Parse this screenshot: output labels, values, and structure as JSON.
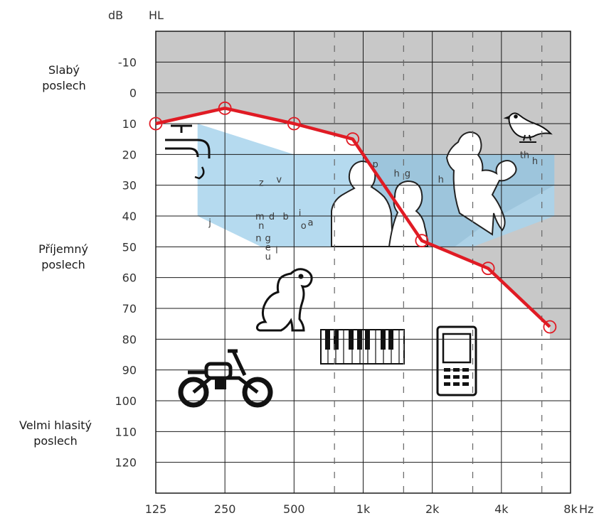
{
  "chart_data": {
    "type": "line",
    "x_unit_label": "Hz",
    "y_unit_label": "dB HL",
    "y_unit_label_parts": [
      "dB",
      "HL"
    ],
    "x_scale": "log2",
    "y_inverted": true,
    "x_ticks": [
      {
        "hz": 125,
        "label": "125"
      },
      {
        "hz": 250,
        "label": "250"
      },
      {
        "hz": 500,
        "label": "500"
      },
      {
        "hz": 1000,
        "label": "1k"
      },
      {
        "hz": 2000,
        "label": "2k"
      },
      {
        "hz": 4000,
        "label": "4k"
      },
      {
        "hz": 8000,
        "label": "8k"
      }
    ],
    "x_intermediate_hz": [
      750,
      1500,
      3000,
      6000
    ],
    "y_ticks": [
      -10,
      0,
      10,
      20,
      30,
      40,
      50,
      60,
      70,
      80,
      90,
      100,
      110,
      120
    ],
    "ylim": [
      -20,
      130
    ],
    "xlim": [
      125,
      8000
    ],
    "grid": true,
    "series": [
      {
        "color": "#e01b24",
        "x": [
          125,
          250,
          500,
          900,
          1800,
          3500,
          6500
        ],
        "y": [
          10,
          5,
          10,
          15,
          48,
          57,
          76
        ]
      }
    ],
    "region_labels": [
      {
        "lines": [
          "Slabý",
          "poslech"
        ],
        "db": 5
      },
      {
        "lines": [
          "Příjemný",
          "poslech"
        ],
        "db": 55
      },
      {
        "lines": [
          "Velmi hlasitý",
          "poslech"
        ],
        "db": 107
      }
    ],
    "speech_banana_phonemes": [
      {
        "text": "z",
        "hz": 360,
        "db": 29
      },
      {
        "text": "v",
        "hz": 430,
        "db": 28
      },
      {
        "text": "j",
        "hz": 215,
        "db": 42
      },
      {
        "text": "m",
        "hz": 355,
        "db": 40
      },
      {
        "text": "d",
        "hz": 400,
        "db": 40
      },
      {
        "text": "b",
        "hz": 460,
        "db": 40
      },
      {
        "text": "i",
        "hz": 530,
        "db": 39
      },
      {
        "text": "n",
        "hz": 360,
        "db": 43
      },
      {
        "text": "o",
        "hz": 550,
        "db": 43
      },
      {
        "text": "a",
        "hz": 590,
        "db": 42
      },
      {
        "text": "n",
        "hz": 350,
        "db": 47
      },
      {
        "text": "g",
        "hz": 385,
        "db": 47
      },
      {
        "text": "e",
        "hz": 385,
        "db": 50
      },
      {
        "text": "l",
        "hz": 420,
        "db": 51
      },
      {
        "text": "u",
        "hz": 385,
        "db": 53
      },
      {
        "text": "p",
        "hz": 1130,
        "db": 23
      },
      {
        "text": "h",
        "hz": 1400,
        "db": 26
      },
      {
        "text": "g",
        "hz": 1560,
        "db": 26
      },
      {
        "text": "h",
        "hz": 2180,
        "db": 28
      },
      {
        "text": "th",
        "hz": 5050,
        "db": 20
      },
      {
        "text": "h",
        "hz": 5600,
        "db": 22
      }
    ],
    "background_colors": {
      "threshold_region": "#c8c8c8",
      "speech_banana": "#a8d4ec",
      "curve": "#e01b24",
      "grid": "#1a1a1a"
    },
    "icons": [
      "faucet-icon",
      "bird-icon",
      "people-icon",
      "dog-icon",
      "piano-icon",
      "phone-icon",
      "motorcycle-icon"
    ]
  }
}
